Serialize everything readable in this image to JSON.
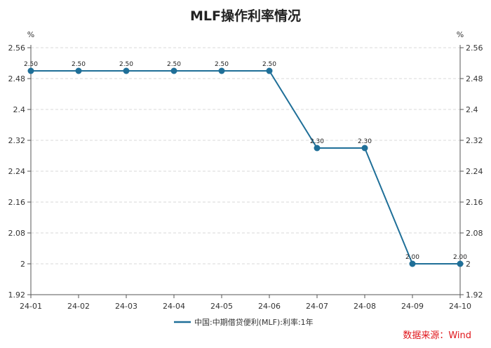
{
  "chart_data": {
    "type": "line",
    "title": "MLF操作利率情况",
    "y_unit_left": "%",
    "y_unit_right": "%",
    "categories": [
      "24-01",
      "24-02",
      "24-03",
      "24-04",
      "24-05",
      "24-06",
      "24-07",
      "24-08",
      "24-09",
      "24-10"
    ],
    "series": [
      {
        "name": "中国:中期借贷便利(MLF):利率:1年",
        "values": [
          2.5,
          2.5,
          2.5,
          2.5,
          2.5,
          2.5,
          2.3,
          2.3,
          2.0,
          2.0
        ],
        "labels": [
          "2.50",
          "2.50",
          "2.50",
          "2.50",
          "2.50",
          "2.50",
          "2.30",
          "2.30",
          "2.00",
          "2.00"
        ],
        "color": "#1f6f98"
      }
    ],
    "ylim": [
      1.92,
      2.56
    ],
    "yticks": [
      1.92,
      2.0,
      2.08,
      2.16,
      2.24,
      2.32,
      2.4,
      2.48,
      2.56
    ],
    "ytick_labels": [
      "1.92",
      "2",
      "2.08",
      "2.16",
      "2.24",
      "2.32",
      "2.4",
      "2.48",
      "2.56"
    ],
    "grid": true,
    "legend_position": "bottom-center",
    "source": "数据来源：Wind"
  }
}
